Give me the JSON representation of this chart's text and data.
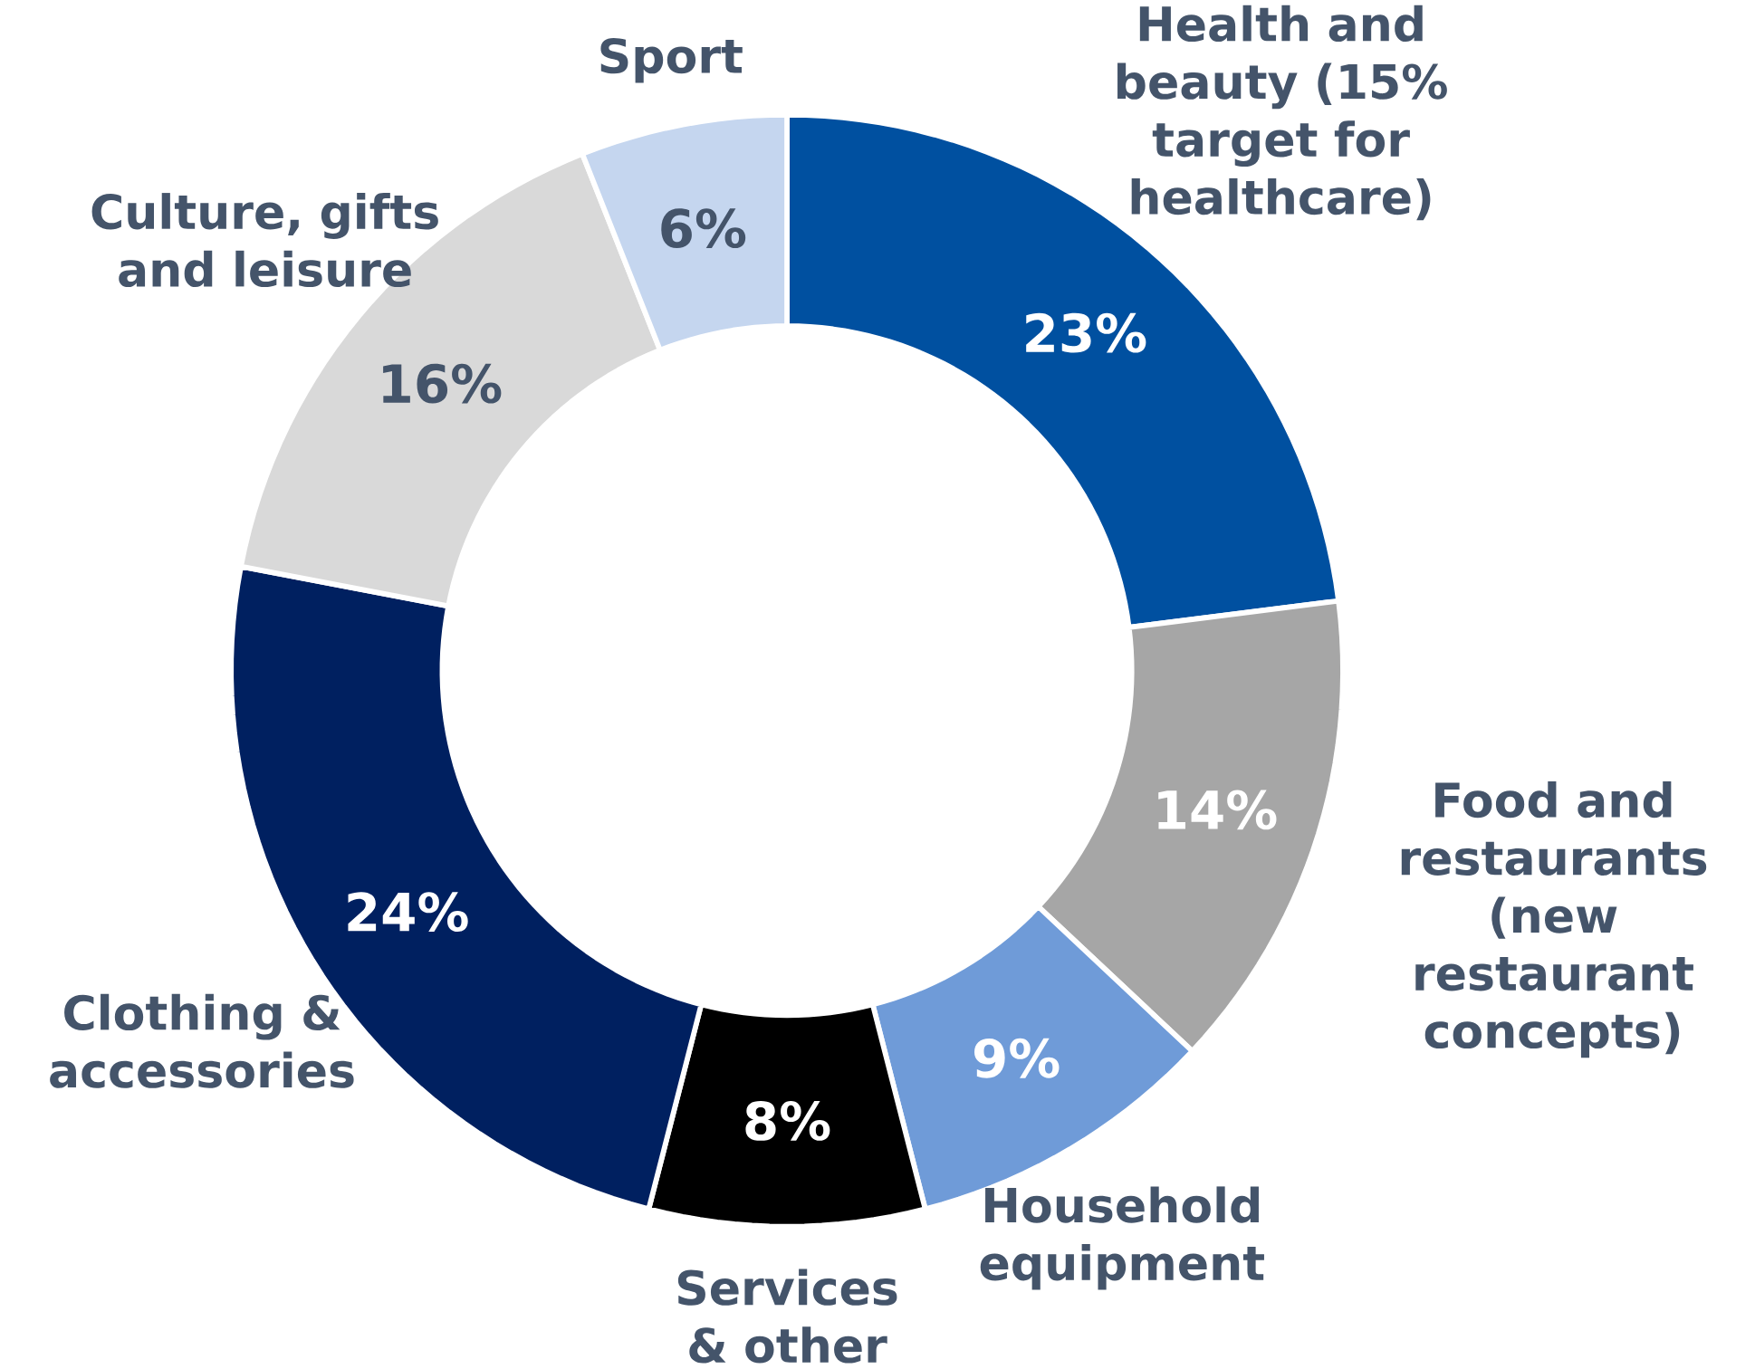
{
  "chart_data": {
    "type": "donut",
    "categories": [
      "Health and beauty (15% target for healthcare)",
      "Food and restaurants (new restaurant concepts)",
      "Household equipment",
      "Services & other",
      "Clothing & accessories",
      "Culture, gifts and leisure",
      "Sport"
    ],
    "values": [
      23,
      14,
      9,
      8,
      24,
      16,
      6
    ],
    "colors": [
      "#0050a0",
      "#a6a6a6",
      "#6f9bd8",
      "#000000",
      "#002060",
      "#d9d9d9",
      "#c5d6ef"
    ],
    "value_labels": [
      "23%",
      "14%",
      "9%",
      "8%",
      "24%",
      "16%",
      "6%"
    ]
  }
}
